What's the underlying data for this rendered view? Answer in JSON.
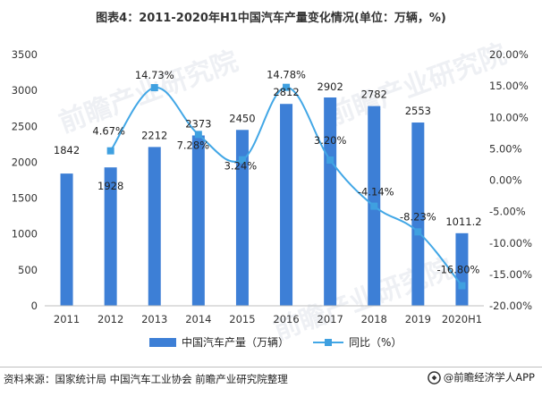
{
  "chart_data": {
    "type": "bar+line",
    "title": "图表4：2011-2020年H1中国汽车产量变化情况(单位：万辆，%)",
    "categories": [
      "2011",
      "2012",
      "2013",
      "2014",
      "2015",
      "2016",
      "2017",
      "2018",
      "2019",
      "2020H1"
    ],
    "series": [
      {
        "name": "中国汽车产量（万辆）",
        "type": "bar",
        "axis": "left",
        "values": [
          1842,
          1928,
          2212,
          2373,
          2450,
          2812,
          2902,
          2782,
          2553,
          1011.2
        ],
        "labels": [
          "1842",
          "1928",
          "2212",
          "2373",
          "2450",
          "2812",
          "2902",
          "2782",
          "2553",
          "1011.2"
        ]
      },
      {
        "name": "同比（%）",
        "type": "line",
        "axis": "right",
        "values": [
          null,
          4.67,
          14.73,
          7.28,
          3.24,
          14.78,
          3.2,
          -4.14,
          -8.23,
          -16.8
        ],
        "labels": [
          "",
          "4.67%",
          "14.73%",
          "7.28%",
          "3.24%",
          "14.78%",
          "3.20%",
          "-4.14%",
          "-8.23%",
          "-16.80%"
        ]
      }
    ],
    "left_axis": {
      "min": 0,
      "max": 3500,
      "step": 500,
      "ticks": [
        "0",
        "500",
        "1000",
        "1500",
        "2000",
        "2500",
        "3000",
        "3500"
      ]
    },
    "right_axis": {
      "min": -20,
      "max": 20,
      "step": 5,
      "ticks": [
        "-20.00%",
        "-15.00%",
        "-10.00%",
        "-5.00%",
        "0.00%",
        "5.00%",
        "10.00%",
        "15.00%",
        "20.00%"
      ]
    },
    "legend_position": "bottom",
    "grid": false
  },
  "colors": {
    "bar": "#3d7fd6",
    "line": "#42a7e6",
    "marker": "#3fa0e0",
    "text": "#333333"
  },
  "footer": {
    "source": "资料来源：国家统计局  中国汽车工业协会  前瞻产业研究院整理",
    "brand": "@前瞻经济学人APP"
  },
  "watermark": "前瞻产业研究院"
}
